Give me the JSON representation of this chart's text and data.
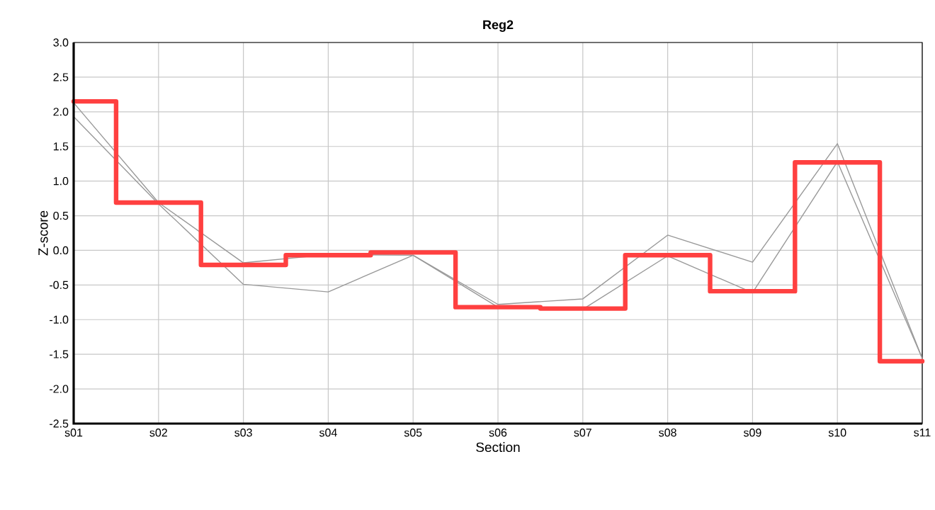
{
  "chart_data": {
    "type": "line",
    "title": "Reg2",
    "xlabel": "Section",
    "ylabel": "Z-score",
    "categories": [
      "s01",
      "s02",
      "s03",
      "s04",
      "s05",
      "s06",
      "s07",
      "s08",
      "s09",
      "s10",
      "s11"
    ],
    "ylim": [
      -2.5,
      3.0
    ],
    "yticks": [
      {
        "value": -2.5,
        "label": "-2.5"
      },
      {
        "value": -2.0,
        "label": "-2.0"
      },
      {
        "value": -1.5,
        "label": "-1.5"
      },
      {
        "value": -1.0,
        "label": "-1.0"
      },
      {
        "value": -0.5,
        "label": "-0.5"
      },
      {
        "value": 0.0,
        "label": "0.0"
      },
      {
        "value": 0.5,
        "label": "0.5"
      },
      {
        "value": 1.0,
        "label": "1.0"
      },
      {
        "value": 1.5,
        "label": "1.5"
      },
      {
        "value": 2.0,
        "label": "2.0"
      },
      {
        "value": 2.5,
        "label": "2.5"
      },
      {
        "value": 3.0,
        "label": "3.0"
      }
    ],
    "grid": true,
    "marker": "none",
    "series": [
      {
        "color": "#999999",
        "values": [
          2.13,
          0.69,
          -0.18,
          -0.06,
          -0.07,
          -0.78,
          -0.7,
          0.22,
          -0.17,
          1.54,
          -1.56
        ]
      },
      {
        "color": "#999999",
        "values": [
          1.93,
          0.67,
          -0.49,
          -0.6,
          -0.07,
          -0.82,
          -0.85,
          -0.08,
          -0.61,
          1.28,
          -1.56
        ]
      },
      {
        "type": "step",
        "color": "#ff4040",
        "values": [
          2.15,
          0.69,
          -0.21,
          -0.07,
          -0.03,
          -0.82,
          -0.84,
          -0.07,
          -0.59,
          1.27,
          -1.6
        ]
      }
    ]
  }
}
